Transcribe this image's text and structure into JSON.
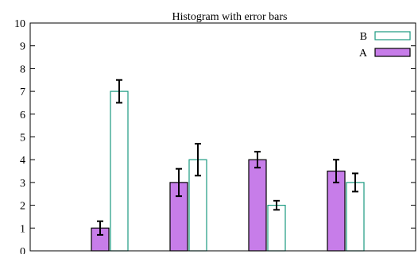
{
  "chart_data": {
    "type": "bar",
    "title": "Histogram with error bars",
    "xlabel": "",
    "ylabel": "",
    "ylim": [
      0,
      10
    ],
    "yticks": [
      0,
      1,
      2,
      3,
      4,
      5,
      6,
      7,
      8,
      9,
      10
    ],
    "groups": 4,
    "legend_position": "top-right",
    "series": [
      {
        "name": "A",
        "style": "filled",
        "fill": "#c77de9",
        "stroke": "#000000",
        "values": [
          1,
          3,
          4,
          3.5
        ],
        "errors": [
          0.3,
          0.6,
          0.35,
          0.5
        ]
      },
      {
        "name": "B",
        "style": "hollow",
        "fill": "#ffffff",
        "stroke": "#1a9a80",
        "values": [
          7,
          4,
          2,
          3
        ],
        "errors": [
          0.5,
          0.7,
          0.2,
          0.4
        ]
      }
    ]
  }
}
